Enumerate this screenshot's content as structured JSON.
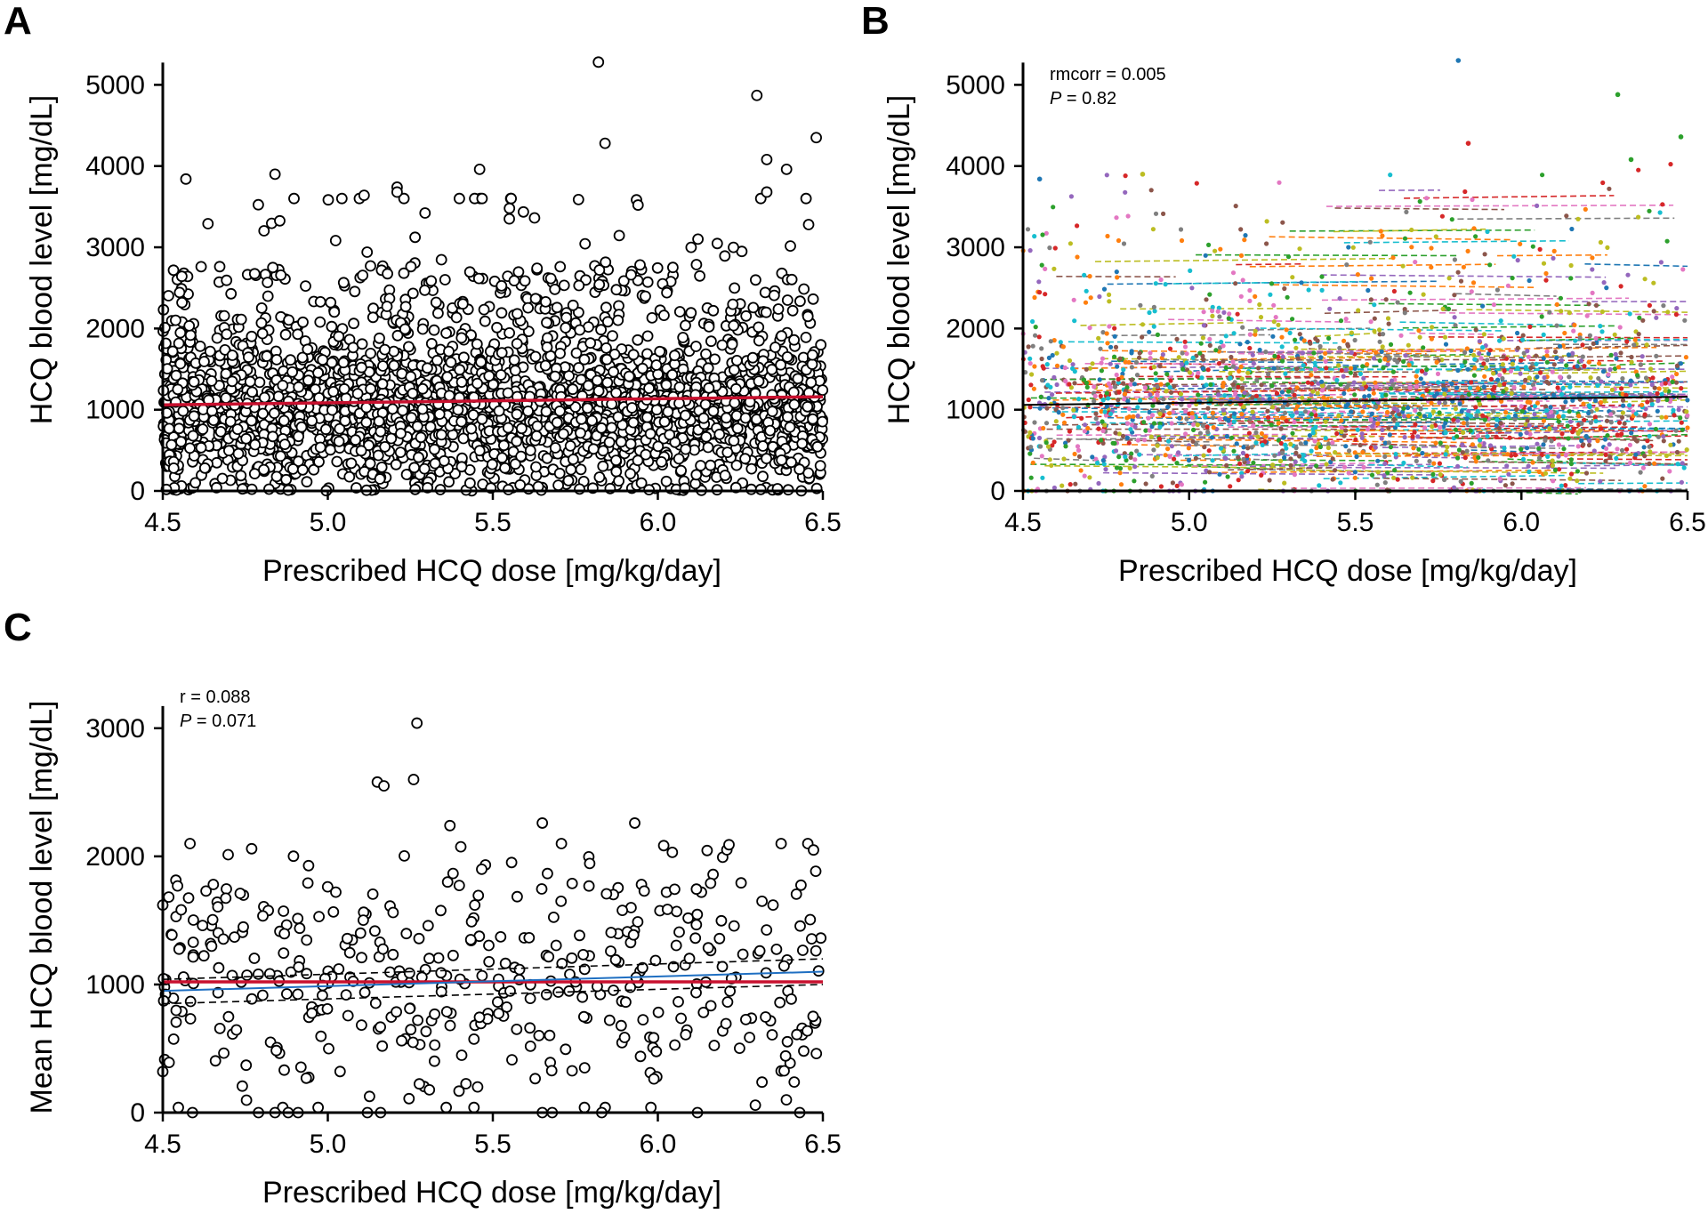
{
  "chart_data": [
    {
      "panel": "A",
      "type": "scatter",
      "title": "",
      "xlabel": "Prescribed HCQ dose [mg/kg/day]",
      "ylabel": "HCQ blood level [mg/dL]",
      "xlim": [
        4.5,
        6.5
      ],
      "ylim": [
        0,
        5300
      ],
      "xticks": [
        "4.5",
        "5.0",
        "5.5",
        "6.0",
        "6.5"
      ],
      "yticks": [
        "0",
        "1000",
        "2000",
        "3000",
        "4000",
        "5000"
      ],
      "xtick_values": [
        4.5,
        5.0,
        5.5,
        6.0,
        6.5
      ],
      "ytick_values": [
        0,
        1000,
        2000,
        3000,
        4000,
        5000
      ],
      "n_points": 2700,
      "points_summary": "dense cloud of individual measurements, most between 0 and 2500 mg/dL",
      "highlight_points": [
        {
          "x": 5.82,
          "y": 5280
        },
        {
          "x": 6.3,
          "y": 4870
        },
        {
          "x": 6.48,
          "y": 4350
        },
        {
          "x": 5.84,
          "y": 4280
        },
        {
          "x": 6.33,
          "y": 4080
        },
        {
          "x": 6.39,
          "y": 3960
        },
        {
          "x": 5.46,
          "y": 3960
        },
        {
          "x": 4.84,
          "y": 3900
        },
        {
          "x": 4.57,
          "y": 3840
        },
        {
          "x": 6.33,
          "y": 3680
        },
        {
          "x": 5.21,
          "y": 3740
        },
        {
          "x": 5.21,
          "y": 3680
        },
        {
          "x": 5.11,
          "y": 3640
        },
        {
          "x": 5.94,
          "y": 3520
        },
        {
          "x": 5.55,
          "y": 3350
        }
      ],
      "regression_line": {
        "color": "#c8102e",
        "x": [
          4.5,
          6.5
        ],
        "y": [
          1060,
          1160
        ]
      }
    },
    {
      "panel": "B",
      "type": "scatter",
      "title": "",
      "xlabel": "Prescribed HCQ dose [mg/kg/day]",
      "ylabel": "HCQ blood level [mg/dL]",
      "xlim": [
        4.5,
        6.5
      ],
      "ylim": [
        0,
        5300
      ],
      "xticks": [
        "4.5",
        "5.0",
        "5.5",
        "6.0",
        "6.5"
      ],
      "yticks": [
        "0",
        "1000",
        "2000",
        "3000",
        "4000",
        "5000"
      ],
      "xtick_values": [
        4.5,
        5.0,
        5.5,
        6.0,
        6.5
      ],
      "ytick_values": [
        0,
        1000,
        2000,
        3000,
        4000,
        5000
      ],
      "annotations": {
        "rmcorr_label": "rmcorr = 0.005",
        "p_prefix": "P",
        "p_value": " = 0.82"
      },
      "points_summary": "per-patient coloured points with dashed per-patient fit lines",
      "series_colors": [
        "#1f77b4",
        "#ff7f0e",
        "#2ca02c",
        "#d62728",
        "#9467bd",
        "#8c564b",
        "#e377c2",
        "#7f7f7f",
        "#bcbd22",
        "#17becf"
      ],
      "regression_line": {
        "color": "#000000",
        "x": [
          4.5,
          6.5
        ],
        "y": [
          1060,
          1160
        ]
      }
    },
    {
      "panel": "C",
      "type": "scatter",
      "title": "",
      "xlabel": "Prescribed HCQ dose [mg/kg/day]",
      "ylabel": "Mean HCQ blood level [mg/dL]",
      "xlim": [
        4.5,
        6.5
      ],
      "ylim": [
        0,
        3200
      ],
      "xticks": [
        "4.5",
        "5.0",
        "5.5",
        "6.0",
        "6.5"
      ],
      "yticks": [
        "0",
        "1000",
        "2000",
        "3000"
      ],
      "xtick_values": [
        4.5,
        5.0,
        5.5,
        6.0,
        6.5
      ],
      "ytick_values": [
        0,
        1000,
        2000,
        3000
      ],
      "annotations": {
        "r_label": "r = 0.088",
        "p_prefix": "P",
        "p_value": " = 0.071"
      },
      "n_points": 430,
      "highlight_points": [
        {
          "x": 5.27,
          "y": 3040
        },
        {
          "x": 5.26,
          "y": 2600
        },
        {
          "x": 5.15,
          "y": 2580
        },
        {
          "x": 5.17,
          "y": 2550
        },
        {
          "x": 5.65,
          "y": 2260
        },
        {
          "x": 5.93,
          "y": 2260
        },
        {
          "x": 5.37,
          "y": 2240
        },
        {
          "x": 4.5,
          "y": 1620
        },
        {
          "x": 4.5,
          "y": 320
        }
      ],
      "zero_points_x": [
        4.59,
        4.79,
        4.84,
        4.88,
        4.91,
        5.12,
        5.16,
        5.65,
        5.68,
        5.83,
        6.12,
        6.43
      ],
      "regression_line": {
        "color": "#1f6fc2",
        "x": [
          4.5,
          6.5
        ],
        "y": [
          950,
          1100
        ]
      },
      "confidence_band": {
        "color": "#000000",
        "upper": {
          "x": [
            4.5,
            6.5
          ],
          "y": [
            1040,
            1200
          ]
        },
        "lower": {
          "x": [
            4.5,
            6.5
          ],
          "y": [
            850,
            1000
          ]
        }
      },
      "mean_line": {
        "color": "#c8102e",
        "y": 1020
      }
    }
  ],
  "panel_letters": {
    "a": "A",
    "b": "B",
    "c": "C"
  }
}
